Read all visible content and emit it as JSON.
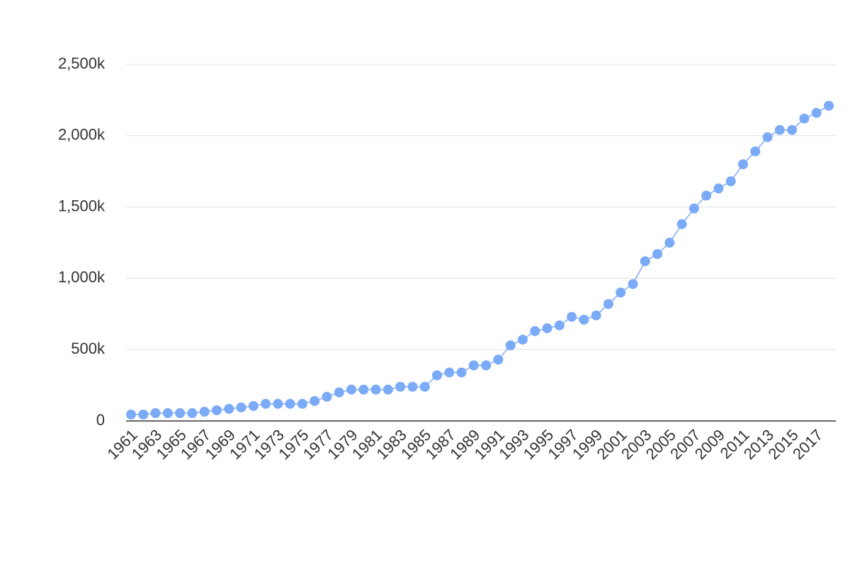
{
  "chart_data": {
    "type": "line",
    "categories": [
      "1961",
      null,
      "1963",
      null,
      "1965",
      null,
      "1967",
      null,
      "1969",
      null,
      "1971",
      null,
      "1973",
      null,
      "1975",
      null,
      "1977",
      null,
      "1979",
      null,
      "1981",
      null,
      "1983",
      null,
      "1985",
      null,
      "1987",
      null,
      "1989",
      null,
      "1991",
      null,
      "1993",
      null,
      "1995",
      null,
      "1997",
      null,
      "1999",
      null,
      "2001",
      null,
      "2003",
      null,
      "2005",
      null,
      "2007",
      null,
      "2009",
      null,
      "2011",
      null,
      "2013",
      null,
      "2015",
      null,
      "2017",
      null
    ],
    "values": [
      45000,
      45000,
      55000,
      55000,
      55000,
      55000,
      65000,
      75000,
      85000,
      95000,
      105000,
      120000,
      120000,
      120000,
      120000,
      140000,
      170000,
      200000,
      220000,
      220000,
      220000,
      220000,
      240000,
      240000,
      240000,
      320000,
      340000,
      340000,
      390000,
      390000,
      430000,
      530000,
      570000,
      630000,
      650000,
      670000,
      730000,
      710000,
      740000,
      820000,
      900000,
      960000,
      1120000,
      1170000,
      1250000,
      1380000,
      1490000,
      1580000,
      1630000,
      1680000,
      1800000,
      1890000,
      1990000,
      2040000,
      2040000,
      2120000,
      2160000,
      2210000
    ],
    "color": "#7baaf7",
    "ylim": [
      0,
      2500000
    ],
    "yticks": [
      0,
      {
        "value": 500000,
        "label": "500k"
      },
      {
        "value": 1000000,
        "label": "1,000k"
      },
      {
        "value": 1500000,
        "label": "1,500k"
      },
      {
        "value": 2000000,
        "label": "2,000k"
      },
      {
        "value": 2500000,
        "label": "2,500k"
      }
    ],
    "grid": true
  }
}
